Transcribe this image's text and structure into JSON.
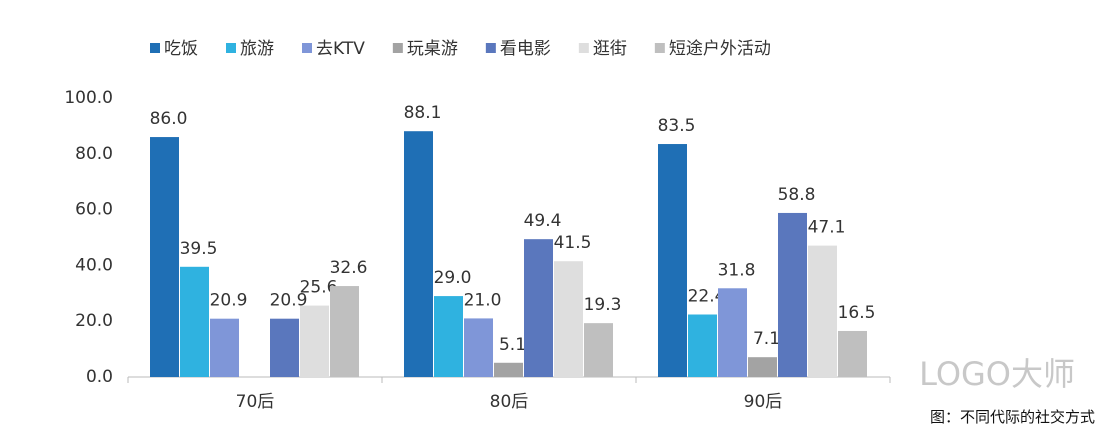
{
  "chart_data": {
    "type": "bar",
    "categories": [
      "70后",
      "80后",
      "90后"
    ],
    "series": [
      {
        "name": "吃饭",
        "color": "#1f6fb5",
        "values": [
          86.0,
          88.1,
          83.5
        ],
        "value_labels": [
          "86.0",
          "88.1",
          "83.5"
        ]
      },
      {
        "name": "旅游",
        "color": "#2fb2e0",
        "values": [
          39.5,
          29.0,
          22.4
        ],
        "value_labels": [
          "39.5",
          "29.0",
          "22.4"
        ]
      },
      {
        "name": "去KTV",
        "color": "#7f96d8",
        "values": [
          20.9,
          21.0,
          31.8
        ],
        "value_labels": [
          "20.9",
          "21.0",
          "31.8"
        ]
      },
      {
        "name": "玩桌游",
        "color": "#a3a3a3",
        "values": [
          null,
          5.1,
          7.1
        ],
        "value_labels": [
          null,
          "5.1",
          "7.1"
        ]
      },
      {
        "name": "看电影",
        "color": "#5a77bd",
        "values": [
          20.9,
          49.4,
          58.8
        ],
        "value_labels": [
          "20.9",
          "49.4",
          "58.8"
        ]
      },
      {
        "name": "逛街",
        "color": "#dedede",
        "values": [
          25.6,
          41.5,
          47.1
        ],
        "value_labels": [
          "25.6",
          "41.5",
          "47.1"
        ]
      },
      {
        "name": "短途户外活动",
        "color": "#bfbfbf",
        "values": [
          32.6,
          19.3,
          16.5
        ],
        "value_labels": [
          "32.6",
          "19.3",
          "16.5"
        ]
      }
    ],
    "ylim": [
      0,
      100
    ],
    "yticks": [
      {
        "value": 0,
        "label": "0.0"
      },
      {
        "value": 20,
        "label": "20.0"
      },
      {
        "value": 40,
        "label": "40.0"
      },
      {
        "value": 60,
        "label": "60.0"
      },
      {
        "value": 80,
        "label": "80.0"
      },
      {
        "value": 100,
        "label": "100.0"
      }
    ],
    "grid": false,
    "legend": "top",
    "caption": "图：不同代际的社交方式",
    "watermark": "LOGO大师"
  }
}
